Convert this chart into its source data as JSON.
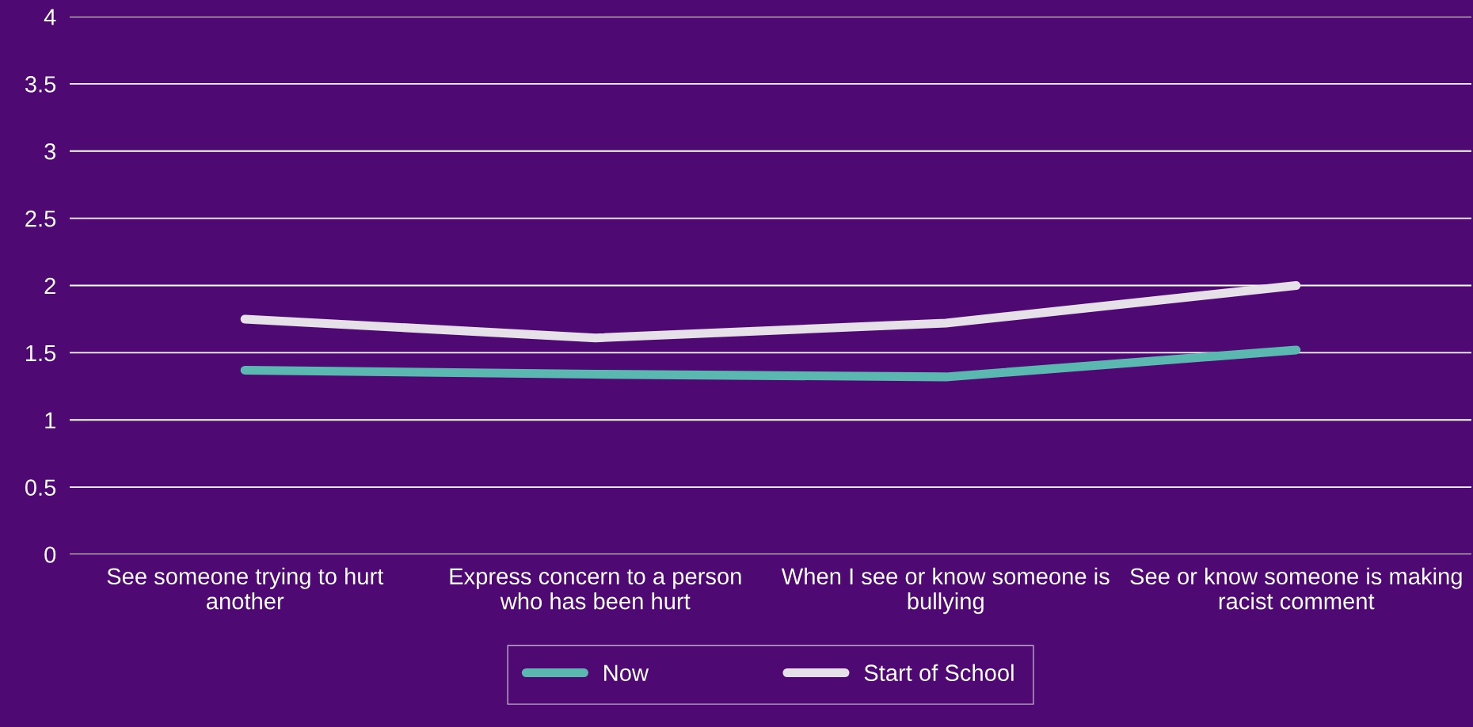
{
  "chart_data": {
    "type": "line",
    "categories": [
      "See someone trying to hurt another",
      "Express concern to a person who has been hurt",
      "When I see or know someone is bullying",
      "See or know someone is making racist comment"
    ],
    "series": [
      {
        "name": "Now",
        "color": "#5bb8b0",
        "values": [
          1.37,
          1.34,
          1.32,
          1.52
        ]
      },
      {
        "name": "Start of School",
        "color": "#e6e0e8",
        "values": [
          1.75,
          1.61,
          1.72,
          2.0
        ]
      }
    ],
    "ylim": [
      0,
      4
    ],
    "yticks": [
      0,
      0.5,
      1,
      1.5,
      2,
      2.5,
      3,
      3.5,
      4
    ],
    "grid": "y",
    "legend": "bottom",
    "marker": "none",
    "line_style": "solid"
  }
}
